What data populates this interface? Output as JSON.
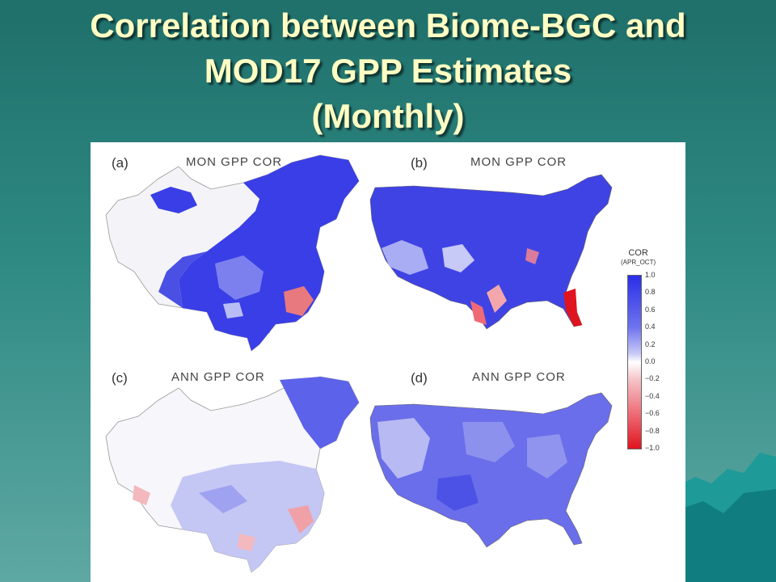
{
  "slide": {
    "title_lines": [
      "Correlation between Biome-BGC and",
      "MOD17 GPP Estimates",
      "(Monthly)"
    ]
  },
  "figure": {
    "panels": [
      {
        "label": "(a)",
        "title": "MON GPP COR"
      },
      {
        "label": "(b)",
        "title": "MON GPP COR"
      },
      {
        "label": "(c)",
        "title": "ANN GPP COR"
      },
      {
        "label": "(d)",
        "title": "ANN GPP COR"
      }
    ],
    "colorbar": {
      "title": "COR",
      "subtitle": "(APR_OCT)",
      "ticks": [
        "1.0",
        "0.8",
        "0.6",
        "0.4",
        "0.2",
        "0.0",
        "−0.2",
        "−0.4",
        "−0.6",
        "−0.8",
        "−1.0"
      ],
      "colors": {
        "high": "#2a2ee8",
        "mid": "#ffffff",
        "low": "#e0141f"
      }
    }
  }
}
